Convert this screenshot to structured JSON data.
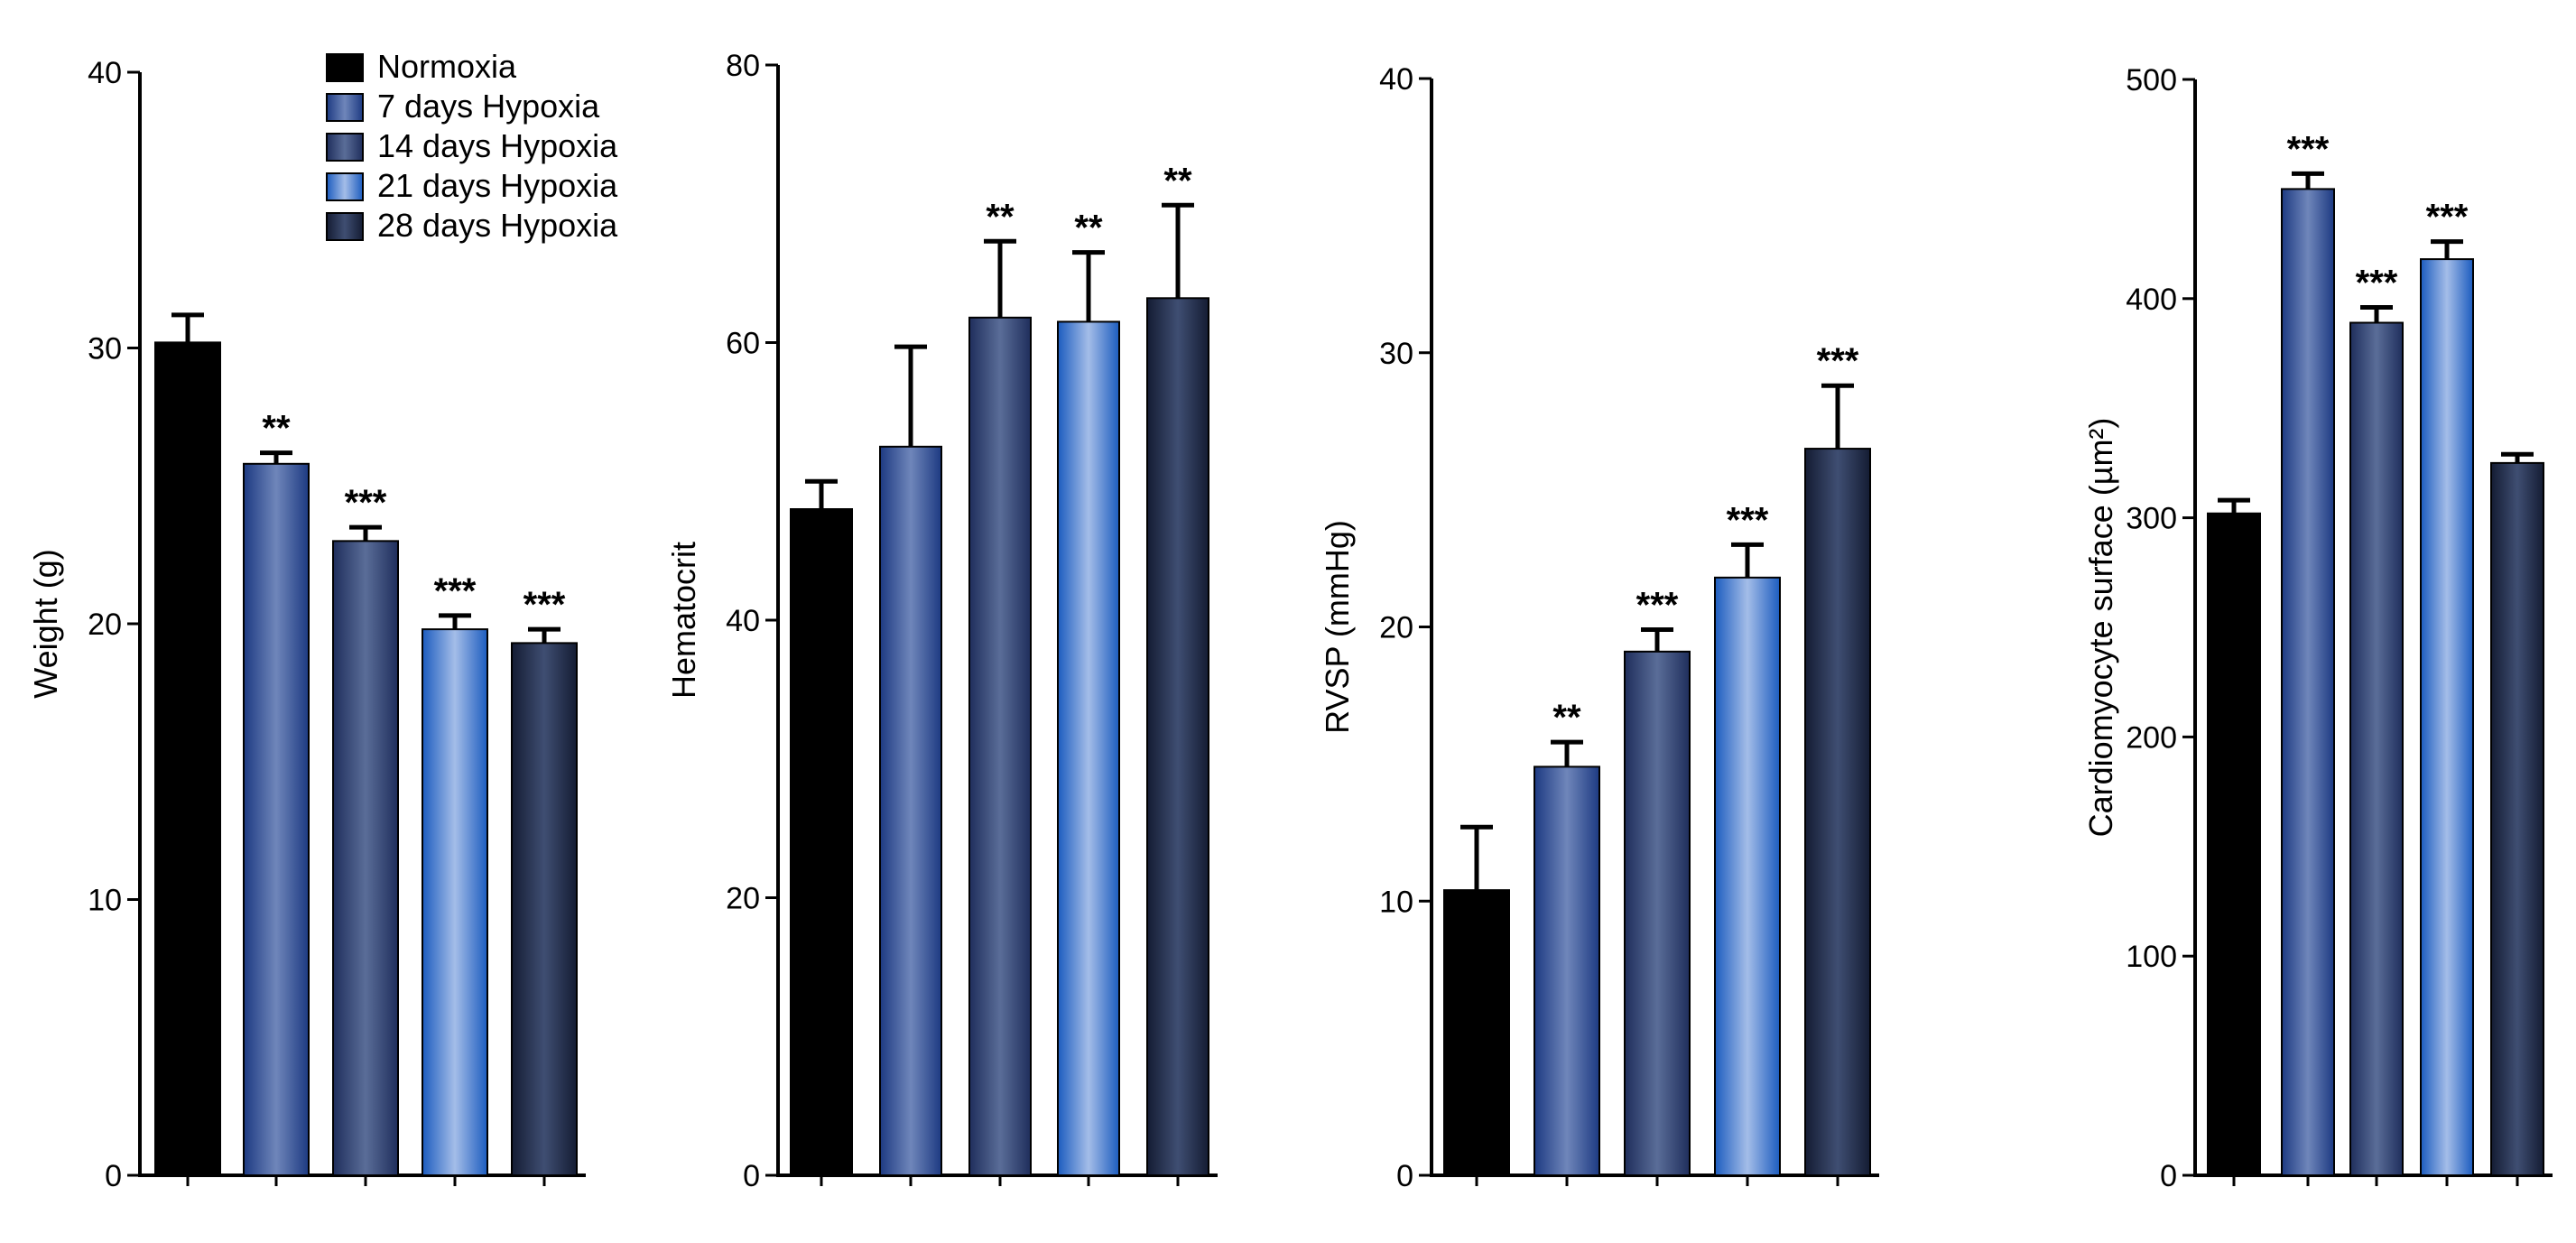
{
  "legend": [
    {
      "label": "Normoxia",
      "fill": "solid-black"
    },
    {
      "label": "7 days Hypoxia",
      "fill": "grad-7"
    },
    {
      "label": "14 days Hypoxia",
      "fill": "grad-14"
    },
    {
      "label": "21 days Hypoxia",
      "fill": "grad-21"
    },
    {
      "label": "28 days Hypoxia",
      "fill": "grad-28"
    }
  ],
  "colors": {
    "normoxia": "#000000",
    "hypoxia_7d": "#3b5b98",
    "hypoxia_14d": "#3a4e7e",
    "hypoxia_21d": "#86a6dc",
    "hypoxia_28d": "#2c3552",
    "axis": "#000000"
  },
  "chart_data": [
    {
      "type": "bar",
      "ylabel": "Weight (g)",
      "ylim": [
        0,
        40
      ],
      "yticks": [
        "0",
        "10",
        "20",
        "30",
        "40"
      ],
      "categories": [
        "Normoxia",
        "7 days Hypoxia",
        "14 days Hypoxia",
        "21 days Hypoxia",
        "28 days Hypoxia"
      ],
      "values": [
        30.2,
        25.8,
        23.0,
        19.8,
        19.3
      ],
      "errors": [
        1.0,
        0.4,
        0.5,
        0.5,
        0.5
      ],
      "significance": [
        "",
        "**",
        "***",
        "***",
        "***"
      ]
    },
    {
      "type": "bar",
      "ylabel": "Hematocrit",
      "ylim": [
        0,
        80
      ],
      "yticks": [
        "0",
        "20",
        "40",
        "60",
        "80"
      ],
      "categories": [
        "Normoxia",
        "7 days Hypoxia",
        "14 days Hypoxia",
        "21 days Hypoxia",
        "28 days Hypoxia"
      ],
      "values": [
        48.0,
        52.5,
        61.8,
        61.5,
        63.2
      ],
      "errors": [
        2.0,
        7.2,
        5.5,
        5.0,
        6.7
      ],
      "significance": [
        "",
        "",
        "**",
        "**",
        "**"
      ]
    },
    {
      "type": "bar",
      "ylabel": "RVSP (mmHg)",
      "ylim": [
        0,
        40
      ],
      "yticks": [
        "0",
        "10",
        "20",
        "30",
        "40"
      ],
      "categories": [
        "Normoxia",
        "7 days Hypoxia",
        "14 days Hypoxia",
        "21 days Hypoxia",
        "28 days Hypoxia"
      ],
      "values": [
        10.4,
        14.9,
        19.1,
        21.8,
        26.5
      ],
      "errors": [
        2.3,
        0.9,
        0.8,
        1.2,
        2.3
      ],
      "significance": [
        "",
        "**",
        "***",
        "***",
        "***"
      ]
    },
    {
      "type": "bar",
      "ylabel": "Cardiomyocyte surface (µm²)",
      "ylim": [
        0,
        500
      ],
      "yticks": [
        "0",
        "100",
        "200",
        "300",
        "400",
        "500"
      ],
      "categories": [
        "Normoxia",
        "7 days Hypoxia",
        "14 days Hypoxia",
        "21 days Hypoxia",
        "28 days Hypoxia"
      ],
      "values": [
        302,
        450,
        389,
        418,
        325
      ],
      "errors": [
        6,
        7,
        7,
        8,
        4
      ],
      "significance": [
        "",
        "***",
        "***",
        "***",
        ""
      ]
    }
  ]
}
